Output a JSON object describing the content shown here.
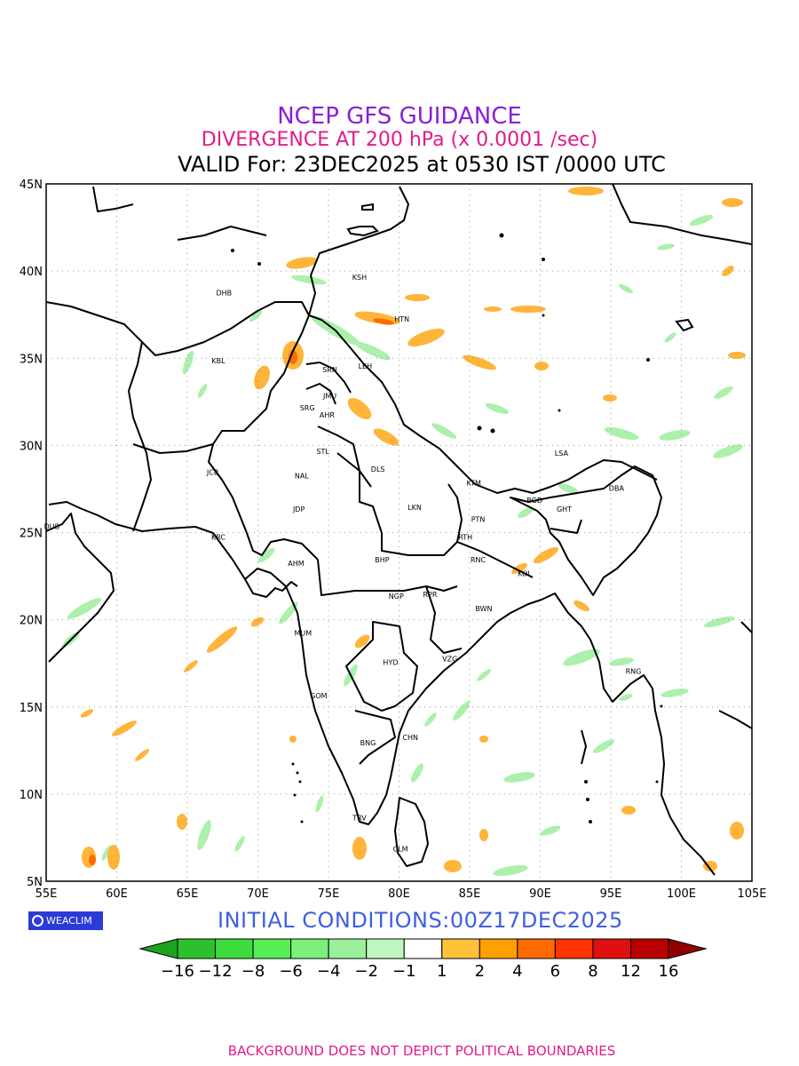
{
  "title": {
    "line1": "NCEP GFS GUIDANCE",
    "line2": "DIVERGENCE AT 200 hPa (x 0.0001 /sec)",
    "line3": "VALID For: 23DEC2025 at 0530 IST /0000 UTC"
  },
  "axes": {
    "lat_labels": [
      "45N",
      "40N",
      "35N",
      "30N",
      "25N",
      "20N",
      "15N",
      "10N",
      "5N"
    ],
    "lon_labels": [
      "55E",
      "60E",
      "65E",
      "70E",
      "75E",
      "80E",
      "85E",
      "90E",
      "95E",
      "100E",
      "105E"
    ],
    "lat_range": [
      5,
      45
    ],
    "lon_range": [
      55,
      105
    ]
  },
  "stations": [
    {
      "code": "KSH",
      "lon": 77.2,
      "lat": 39.5
    },
    {
      "code": "DHB",
      "lon": 67.6,
      "lat": 38.6
    },
    {
      "code": "HTN",
      "lon": 80.2,
      "lat": 37.1
    },
    {
      "code": "KBL",
      "lon": 67.2,
      "lat": 34.7
    },
    {
      "code": "SRN",
      "lon": 75.1,
      "lat": 34.2
    },
    {
      "code": "LEH",
      "lon": 77.6,
      "lat": 34.4
    },
    {
      "code": "JMU",
      "lon": 75.1,
      "lat": 32.7
    },
    {
      "code": "SRG",
      "lon": 73.5,
      "lat": 32.0
    },
    {
      "code": "AHR",
      "lon": 74.9,
      "lat": 31.6
    },
    {
      "code": "STL",
      "lon": 74.6,
      "lat": 29.5
    },
    {
      "code": "DLS",
      "lon": 78.5,
      "lat": 28.5
    },
    {
      "code": "LSA",
      "lon": 91.5,
      "lat": 29.4
    },
    {
      "code": "JCB",
      "lon": 66.8,
      "lat": 28.3
    },
    {
      "code": "NAL",
      "lon": 73.1,
      "lat": 28.1
    },
    {
      "code": "KTM",
      "lon": 85.3,
      "lat": 27.7
    },
    {
      "code": "BGD",
      "lon": 89.6,
      "lat": 26.7
    },
    {
      "code": "DBA",
      "lon": 95.4,
      "lat": 27.4
    },
    {
      "code": "JDP",
      "lon": 72.9,
      "lat": 26.2
    },
    {
      "code": "LKN",
      "lon": 81.1,
      "lat": 26.3
    },
    {
      "code": "GHT",
      "lon": 91.7,
      "lat": 26.2
    },
    {
      "code": "PTN",
      "lon": 85.6,
      "lat": 25.6
    },
    {
      "code": "DUB",
      "lon": 55.4,
      "lat": 25.2
    },
    {
      "code": "KRC",
      "lon": 67.2,
      "lat": 24.6
    },
    {
      "code": "RTH",
      "lon": 84.7,
      "lat": 24.6
    },
    {
      "code": "BHP",
      "lon": 78.8,
      "lat": 23.3
    },
    {
      "code": "AHM",
      "lon": 72.7,
      "lat": 23.1
    },
    {
      "code": "RNC",
      "lon": 85.6,
      "lat": 23.3
    },
    {
      "code": "KOL",
      "lon": 88.9,
      "lat": 22.5
    },
    {
      "code": "NGP",
      "lon": 79.8,
      "lat": 21.2
    },
    {
      "code": "RPR",
      "lon": 82.2,
      "lat": 21.3
    },
    {
      "code": "BWN",
      "lon": 86.0,
      "lat": 20.5
    },
    {
      "code": "MUM",
      "lon": 73.2,
      "lat": 19.1
    },
    {
      "code": "HYD",
      "lon": 79.4,
      "lat": 17.4
    },
    {
      "code": "VZG",
      "lon": 83.6,
      "lat": 17.6
    },
    {
      "code": "RNG",
      "lon": 96.6,
      "lat": 16.9
    },
    {
      "code": "GOM",
      "lon": 74.3,
      "lat": 15.5
    },
    {
      "code": "BNG",
      "lon": 77.8,
      "lat": 12.8
    },
    {
      "code": "CHN",
      "lon": 80.8,
      "lat": 13.1
    },
    {
      "code": "TRV",
      "lon": 77.2,
      "lat": 8.5
    },
    {
      "code": "CLM",
      "lon": 80.1,
      "lat": 6.7
    }
  ],
  "colorbar": {
    "labels": [
      "−16",
      "−12",
      "−8",
      "−6",
      "−4",
      "−2",
      "−1",
      "1",
      "2",
      "4",
      "6",
      "8",
      "12",
      "16"
    ],
    "colors": [
      "#1ea31e",
      "#2cc12c",
      "#3bdc3b",
      "#55ee55",
      "#7bf07b",
      "#9cf09c",
      "#bef7be",
      "#ffffff",
      "#ffc23a",
      "#ff9f00",
      "#ff6a00",
      "#ff3300",
      "#e01010",
      "#b80000",
      "#900000"
    ]
  },
  "badge": "WEACLIM",
  "initial_conditions": "INITIAL  CONDITIONS:00Z17DEC2025",
  "footer": "BACKGROUND DOES NOT DEPICT POLITICAL BOUNDARIES"
}
